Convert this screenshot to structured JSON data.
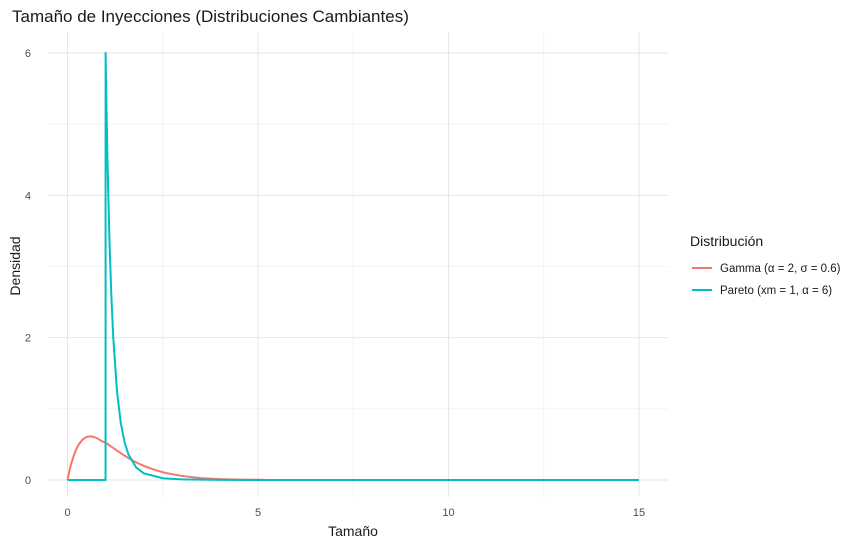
{
  "chart_data": {
    "type": "line",
    "title": "Tamaño de Inyecciones (Distribuciones Cambiantes)",
    "xlabel": "Tamaño",
    "ylabel": "Densidad",
    "xlim": [
      0,
      15
    ],
    "ylim": [
      0,
      6
    ],
    "xticks": [
      0,
      5,
      10,
      15
    ],
    "yticks": [
      0,
      2,
      4,
      6
    ],
    "grid": true,
    "legend": {
      "title": "Distribución",
      "position": "right"
    },
    "series": [
      {
        "name": "Gamma (α = 2, σ = 0.6)",
        "color": "#F8766D",
        "x": [
          0,
          0.05,
          0.1,
          0.2,
          0.3,
          0.4,
          0.5,
          0.6,
          0.7,
          0.8,
          0.9,
          1.0,
          1.2,
          1.4,
          1.6,
          1.8,
          2.0,
          2.3,
          2.6,
          3.0,
          3.5,
          4.0,
          4.5,
          5.0,
          5.2
        ],
        "y": [
          0,
          0.128,
          0.235,
          0.397,
          0.505,
          0.571,
          0.605,
          0.613,
          0.604,
          0.579,
          0.546,
          0.525,
          0.451,
          0.376,
          0.308,
          0.248,
          0.199,
          0.14,
          0.096,
          0.057,
          0.027,
          0.013,
          0.006,
          0.003,
          0.002
        ]
      },
      {
        "name": "Pareto (xm = 1, α = 6)",
        "color": "#00BFC4",
        "x": [
          0,
          0.999,
          1.0,
          1.02,
          1.05,
          1.1,
          1.15,
          1.2,
          1.3,
          1.4,
          1.5,
          1.6,
          1.8,
          2.0,
          2.5,
          3.0,
          4.0,
          5.0,
          8.0,
          10.0,
          15.0
        ],
        "y": [
          0,
          0,
          6.0,
          5.33,
          4.48,
          3.39,
          2.6,
          2.01,
          1.24,
          0.797,
          0.527,
          0.358,
          0.177,
          0.094,
          0.025,
          0.008,
          0.0015,
          0.0004,
          0.0,
          0.0,
          0.0
        ]
      }
    ]
  }
}
